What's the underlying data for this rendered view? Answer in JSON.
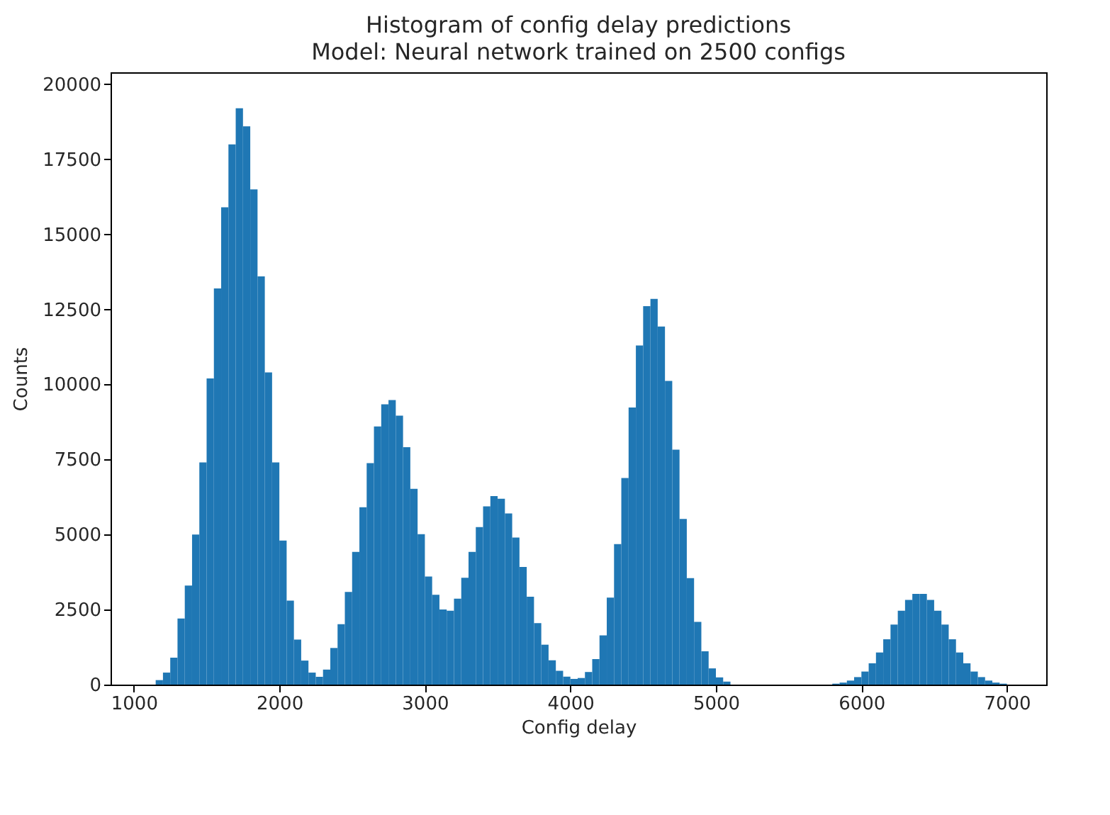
{
  "chart_data": {
    "type": "histogram",
    "title": "Histogram of config delay predictions",
    "subtitle": "Model: Neural network trained on 2500 configs",
    "xlabel": "Config delay",
    "ylabel": "Counts",
    "color": "#1f77b4",
    "bins": [
      1150,
      1200,
      1250,
      1300,
      1350,
      1400,
      1450,
      1500,
      1550,
      1600,
      1650,
      1700,
      1750,
      1800,
      1850,
      1900,
      1950,
      2000,
      2050,
      2100,
      2150,
      2200,
      2250,
      2300,
      2350,
      2400,
      2450,
      2500,
      2550,
      2600,
      2650,
      2700,
      2750,
      2800,
      2850,
      2900,
      2950,
      3000,
      3050,
      3100,
      3150,
      3200,
      3250,
      3300,
      3350,
      3400,
      3450,
      3500,
      3550,
      3600,
      3650,
      3700,
      3750,
      3800,
      3850,
      3900,
      3950,
      4000,
      4050,
      4100,
      4150,
      4200,
      4250,
      4300,
      4350,
      4400,
      4450,
      4500,
      4550,
      4600,
      4650,
      4700,
      4750,
      4800,
      4850,
      4900,
      4950,
      5000,
      5050,
      5100,
      5150,
      5200,
      5250,
      5300,
      5350,
      5400,
      5450,
      5500,
      5550,
      5600,
      5650,
      5700,
      5750,
      5800,
      5850,
      5900,
      5950,
      6000,
      6050,
      6100,
      6150,
      6200,
      6250,
      6300,
      6350,
      6400,
      6450,
      6500,
      6550,
      6600,
      6650,
      6700,
      6750,
      6800,
      6850,
      6900,
      6950,
      7000
    ],
    "values": [
      150,
      400,
      900,
      2200,
      3300,
      5000,
      7400,
      10200,
      13200,
      15900,
      18000,
      19200,
      18600,
      16500,
      13600,
      10400,
      7400,
      4800,
      2800,
      1500,
      800,
      400,
      260,
      500,
      1220,
      2010,
      3090,
      4420,
      5910,
      7380,
      8600,
      9340,
      9480,
      8960,
      7910,
      6520,
      5010,
      3600,
      2990,
      2500,
      2460,
      2860,
      3560,
      4420,
      5250,
      5940,
      6280,
      6190,
      5700,
      4900,
      3920,
      2930,
      2050,
      1330,
      810,
      460,
      265,
      190,
      220,
      420,
      850,
      1640,
      2900,
      4680,
      6880,
      9230,
      11300,
      12610,
      12850,
      11930,
      10120,
      7830,
      5520,
      3550,
      2090,
      1110,
      540,
      240,
      100,
      0,
      0,
      0,
      0,
      0,
      0,
      0,
      0,
      0,
      0,
      0,
      0,
      0,
      0,
      31,
      67,
      134,
      250,
      435,
      710,
      1070,
      1510,
      2000,
      2460,
      2820,
      3020,
      3020,
      2820,
      2460,
      2000,
      1510,
      1070,
      710,
      435,
      250,
      134,
      67,
      31
    ],
    "xlim": [
      840,
      7270
    ],
    "xticks": [
      1000,
      2000,
      3000,
      4000,
      5000,
      6000,
      7000
    ],
    "ylim": [
      0,
      20400
    ],
    "yticks": [
      0,
      2500,
      5000,
      7500,
      10000,
      12500,
      15000,
      17500,
      20000
    ]
  }
}
